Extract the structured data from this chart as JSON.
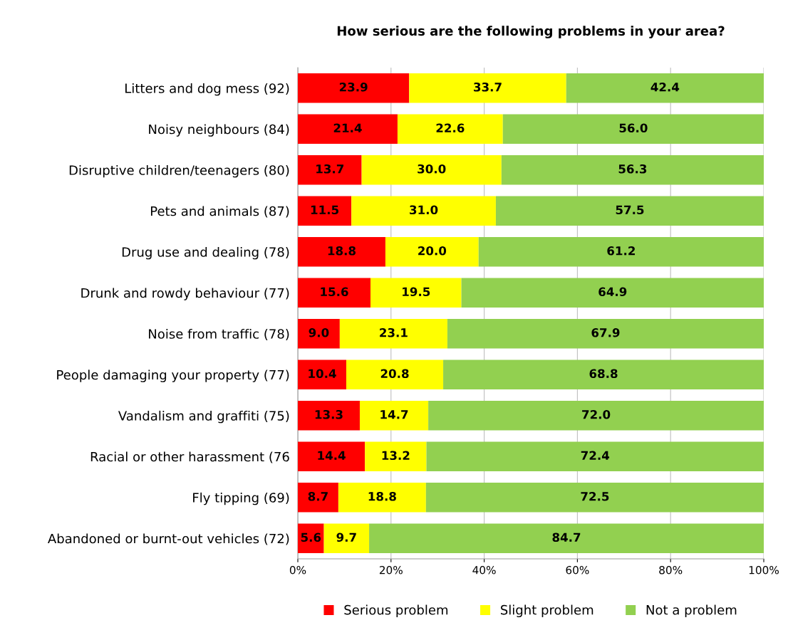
{
  "chart_data": {
    "type": "bar",
    "orientation": "horizontal",
    "stacked": true,
    "title": "How serious are the following problems in your area?",
    "categories": [
      "Litters and dog mess (92)",
      "Noisy neighbours (84)",
      "Disruptive children/teenagers (80)",
      "Pets and animals (87)",
      "Drug use and dealing (78)",
      "Drunk and rowdy behaviour (77)",
      "Noise from traffic (78)",
      "People damaging your property (77)",
      "Vandalism and graffiti (75)",
      "Racial or other harassment (76",
      "Fly tipping (69)",
      "Abandoned or burnt-out vehicles (72)"
    ],
    "series": [
      {
        "name": "Serious problem",
        "color": "#ff0000",
        "values": [
          23.9,
          21.4,
          13.7,
          11.5,
          18.8,
          15.6,
          9.0,
          10.4,
          13.3,
          14.4,
          8.7,
          5.6
        ],
        "value_labels": [
          "23.9",
          "21.4",
          "13.7",
          "11.5",
          "18.8",
          "15.6",
          "9.0",
          "10.4",
          "13.3",
          "14.4",
          "8.7",
          "5.6"
        ]
      },
      {
        "name": "Slight problem",
        "color": "#ffff00",
        "values": [
          33.7,
          22.6,
          30.0,
          31.0,
          20.0,
          19.5,
          23.1,
          20.8,
          14.7,
          13.2,
          18.8,
          9.7
        ],
        "value_labels": [
          "33.7",
          "22.6",
          "30.0",
          "31.0",
          "20.0",
          "19.5",
          "23.1",
          "20.8",
          "14.7",
          "13.2",
          "18.8",
          "9.7"
        ]
      },
      {
        "name": "Not a problem",
        "color": "#92d050",
        "values": [
          42.4,
          56.0,
          56.3,
          57.5,
          61.2,
          64.9,
          67.9,
          68.8,
          72.0,
          72.4,
          72.5,
          84.7
        ],
        "value_labels": [
          "42.4",
          "56.0",
          "56.3",
          "57.5",
          "61.2",
          "64.9",
          "67.9",
          "68.8",
          "72.0",
          "72.4",
          "72.5",
          "84.7"
        ]
      }
    ],
    "xlim": [
      0,
      100
    ],
    "xticks": [
      {
        "value": 0,
        "label": "0%"
      },
      {
        "value": 20,
        "label": "20%"
      },
      {
        "value": 40,
        "label": "40%"
      },
      {
        "value": 60,
        "label": "60%"
      },
      {
        "value": 80,
        "label": "80%"
      },
      {
        "value": 100,
        "label": "100%"
      }
    ],
    "grid": "x",
    "legend": "bottom"
  }
}
